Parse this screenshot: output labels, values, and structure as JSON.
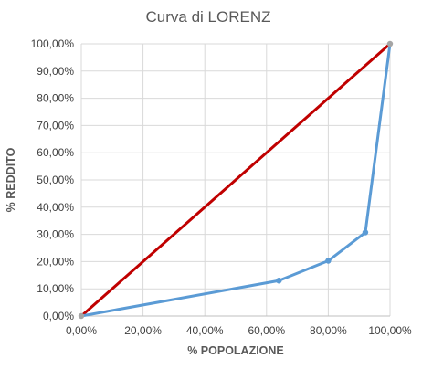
{
  "chart_data": {
    "type": "line",
    "title": "Curva di LORENZ",
    "xlabel": "% POPOLAZIONE",
    "ylabel": "% REDDITO",
    "xlim": [
      0,
      100
    ],
    "ylim": [
      0,
      100
    ],
    "x_ticks": [
      "0,00%",
      "20,00%",
      "40,00%",
      "60,00%",
      "80,00%",
      "100,00%"
    ],
    "y_ticks": [
      "0,00%",
      "10,00%",
      "20,00%",
      "30,00%",
      "40,00%",
      "50,00%",
      "60,00%",
      "70,00%",
      "80,00%",
      "90,00%",
      "100,00%"
    ],
    "x_tick_values": [
      0,
      20,
      40,
      60,
      80,
      100
    ],
    "y_tick_values": [
      0,
      10,
      20,
      30,
      40,
      50,
      60,
      70,
      80,
      90,
      100
    ],
    "grid": true,
    "series": [
      {
        "color": "#C00000",
        "markers": false,
        "x": [
          0,
          100
        ],
        "y": [
          0,
          100
        ]
      },
      {
        "color": "#5B9BD5",
        "markers": true,
        "x": [
          0,
          64,
          80,
          92,
          100
        ],
        "y": [
          0,
          13,
          20.3,
          30.7,
          100
        ]
      }
    ],
    "endpoint_marker_color": "#A5A5A5"
  }
}
